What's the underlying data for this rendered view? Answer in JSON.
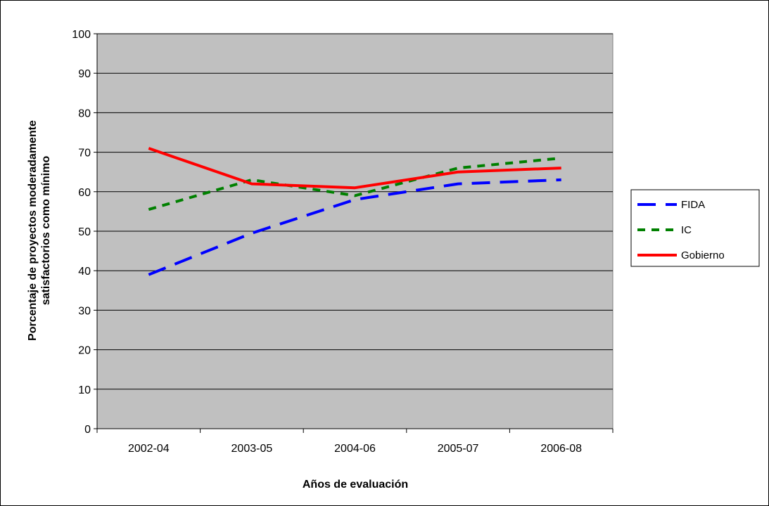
{
  "chart_data": {
    "type": "line",
    "title": "",
    "xlabel": "Años de evaluación",
    "ylabel_lines": [
      "Porcentaje de proyectos moderadamente",
      "satisfactorios como mínimo"
    ],
    "categories": [
      "2002-04",
      "2003-05",
      "2004-06",
      "2005-07",
      "2006-08"
    ],
    "ylim": [
      0,
      100
    ],
    "yticks": [
      "0",
      "10",
      "20",
      "30",
      "40",
      "50",
      "60",
      "70",
      "80",
      "90",
      "100"
    ],
    "grid": "horizontal",
    "legend_position": "right",
    "plot_background": "#c0c0c0",
    "series": [
      {
        "name": "FIDA",
        "values": [
          39,
          49.5,
          58,
          62,
          63
        ],
        "color": "#0000ff",
        "dash": "dashed"
      },
      {
        "name": "IC",
        "values": [
          55.5,
          63,
          59,
          66,
          68.5
        ],
        "color": "#008000",
        "dash": "dotted"
      },
      {
        "name": "Gobierno",
        "values": [
          71,
          62,
          61,
          65,
          66
        ],
        "color": "#ff0000",
        "dash": "solid"
      }
    ]
  }
}
